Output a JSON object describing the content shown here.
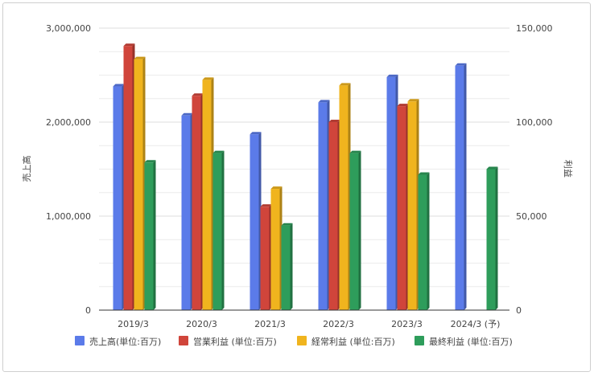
{
  "chart_data": {
    "type": "bar",
    "categories": [
      "2019/3",
      "2020/3",
      "2021/3",
      "2022/3",
      "2023/3",
      "2024/3 (予)"
    ],
    "ylabel_left": "売上高",
    "ylabel_right": "利益",
    "left_ylim": [
      0,
      3000000
    ],
    "right_ylim": [
      0,
      150000
    ],
    "left_ticks": [
      "0",
      "1,000,000",
      "2,000,000",
      "3,000,000"
    ],
    "right_ticks": [
      "0",
      "50,000",
      "100,000",
      "150,000"
    ],
    "grid": true,
    "legend_position": "bottom",
    "series": [
      {
        "name": "売上高(単位:百万)",
        "axis": "left",
        "color": "#5b7be9",
        "values": [
          2380000,
          2070000,
          1870000,
          2210000,
          2480000,
          2600000
        ]
      },
      {
        "name": "営業利益 (単位:百万)",
        "axis": "right",
        "color": "#d0453b",
        "values": [
          140500,
          114000,
          55000,
          100000,
          108500,
          null
        ]
      },
      {
        "name": "経常利益 (単位:百万)",
        "axis": "right",
        "color": "#f0b41e",
        "values": [
          133500,
          122500,
          64500,
          119500,
          111000,
          null
        ]
      },
      {
        "name": "最終利益 (単位:百万)",
        "axis": "right",
        "color": "#2e9d5b",
        "values": [
          78500,
          83500,
          45000,
          83500,
          72000,
          75000
        ]
      }
    ]
  }
}
